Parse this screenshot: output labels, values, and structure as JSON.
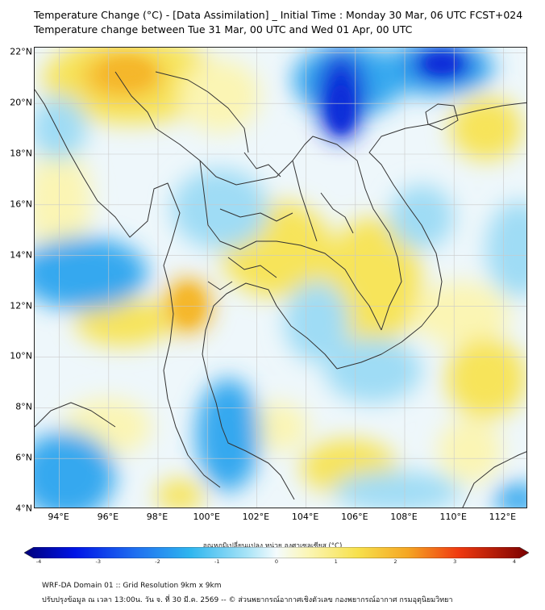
{
  "header": {
    "title_line1": "Temperature Change (°C) - [Data Assimilation] _ Initial Time : Monday 30 Mar, 06 UTC FCST+024",
    "title_line2": "Temperature change between Tue 31 Mar, 00 UTC and Wed 01 Apr, 00 UTC"
  },
  "map": {
    "lat_labels": [
      "22°N",
      "20°N",
      "18°N",
      "16°N",
      "14°N",
      "12°N",
      "10°N",
      "8°N",
      "6°N",
      "4°N"
    ],
    "lat_values": [
      22,
      20,
      18,
      16,
      14,
      12,
      10,
      8,
      6,
      4
    ],
    "lon_labels": [
      "94°E",
      "96°E",
      "98°E",
      "100°E",
      "102°E",
      "104°E",
      "106°E",
      "108°E",
      "110°E",
      "112°E"
    ],
    "lon_values": [
      94,
      96,
      98,
      100,
      102,
      104,
      106,
      108,
      110,
      112
    ],
    "lon_range": [
      93,
      113
    ],
    "lat_range": [
      4,
      22.2
    ],
    "colors": {
      "neg_strong": "#0a2fd9",
      "neg_mid": "#35a8ef",
      "neg_light": "#9fdcf5",
      "neutral": "#eef7fb",
      "pos_light": "#fbf5b4",
      "pos_mid": "#f7e45a",
      "pos_strong": "#f5b72a",
      "border": "#333333",
      "grid": "#c9c9c9"
    }
  },
  "colorbar": {
    "title": "อุณหภูมิเปลี่ยนแปลง หน่วย องศาเซลเซียส (°C)",
    "tick_labels": [
      "-4",
      "-3",
      "-2",
      "-1",
      "0",
      "1",
      "2",
      "3",
      "4"
    ],
    "tick_values": [
      -4,
      -3,
      -2,
      -1,
      0,
      1,
      2,
      3,
      4
    ]
  },
  "footer": {
    "line1": "WRF-DA Domain 01 :: Grid Resolution 9km x 9km",
    "line2": "ปรับปรุงข้อมูล ณ เวลา 13:00น. วัน จ. ที่ 30 มี.ค. 2569 -- © ส่วนพยากรณ์อากาศเชิงตัวเลข กองพยากรณ์อากาศ กรมอุตุนิยมวิทยา"
  }
}
